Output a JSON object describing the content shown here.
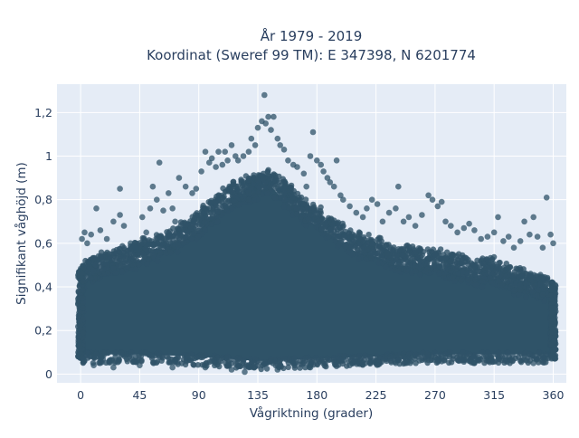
{
  "chart_data": {
    "type": "scatter",
    "title_line1": "År 1979 - 2019",
    "title_line2": "Koordinat (Sweref 99 TM): E 347398, N 6201774",
    "xlabel": "Vågriktning (grader)",
    "ylabel": "Signifikant våghöjd (m)",
    "xlim": [
      -18,
      370
    ],
    "ylim": [
      -0.04,
      1.33
    ],
    "x_ticks": [
      0,
      45,
      90,
      135,
      180,
      225,
      270,
      315,
      360
    ],
    "x_tick_labels": [
      "0",
      "45",
      "90",
      "135",
      "180",
      "225",
      "270",
      "315",
      "360"
    ],
    "y_ticks": [
      0,
      0.2,
      0.4,
      0.6,
      0.8,
      1.0,
      1.2
    ],
    "y_tick_labels": [
      "0",
      "0,2",
      "0,4",
      "0,6",
      "0,8",
      "1",
      "1,2"
    ],
    "grid": true,
    "marker_color": "#2f5368",
    "plot_bg": "#e5ecf6",
    "dense_band": {
      "x_range": [
        0,
        360
      ],
      "upper_envelope": [
        [
          0,
          0.48
        ],
        [
          10,
          0.52
        ],
        [
          20,
          0.54
        ],
        [
          30,
          0.55
        ],
        [
          45,
          0.58
        ],
        [
          60,
          0.62
        ],
        [
          75,
          0.66
        ],
        [
          90,
          0.72
        ],
        [
          105,
          0.8
        ],
        [
          120,
          0.86
        ],
        [
          135,
          0.9
        ],
        [
          145,
          0.92
        ],
        [
          155,
          0.86
        ],
        [
          170,
          0.78
        ],
        [
          180,
          0.74
        ],
        [
          195,
          0.68
        ],
        [
          210,
          0.62
        ],
        [
          225,
          0.6
        ],
        [
          240,
          0.56
        ],
        [
          255,
          0.55
        ],
        [
          270,
          0.55
        ],
        [
          285,
          0.52
        ],
        [
          300,
          0.5
        ],
        [
          315,
          0.5
        ],
        [
          330,
          0.46
        ],
        [
          345,
          0.44
        ],
        [
          360,
          0.42
        ]
      ],
      "lower_envelope": [
        [
          0,
          0.07
        ],
        [
          45,
          0.07
        ],
        [
          90,
          0.06
        ],
        [
          135,
          0.04
        ],
        [
          180,
          0.05
        ],
        [
          225,
          0.06
        ],
        [
          270,
          0.07
        ],
        [
          315,
          0.07
        ],
        [
          360,
          0.07
        ]
      ]
    },
    "outliers": [
      [
        1,
        0.62
      ],
      [
        3,
        0.65
      ],
      [
        5,
        0.6
      ],
      [
        8,
        0.64
      ],
      [
        12,
        0.76
      ],
      [
        15,
        0.66
      ],
      [
        20,
        0.62
      ],
      [
        25,
        0.7
      ],
      [
        30,
        0.73
      ],
      [
        30,
        0.85
      ],
      [
        33,
        0.68
      ],
      [
        38,
        0.6
      ],
      [
        42,
        0.58
      ],
      [
        47,
        0.72
      ],
      [
        50,
        0.65
      ],
      [
        53,
        0.76
      ],
      [
        55,
        0.86
      ],
      [
        58,
        0.8
      ],
      [
        60,
        0.97
      ],
      [
        63,
        0.75
      ],
      [
        67,
        0.83
      ],
      [
        70,
        0.76
      ],
      [
        72,
        0.7
      ],
      [
        75,
        0.9
      ],
      [
        80,
        0.86
      ],
      [
        85,
        0.83
      ],
      [
        88,
        0.85
      ],
      [
        92,
        0.93
      ],
      [
        95,
        1.02
      ],
      [
        98,
        0.97
      ],
      [
        100,
        0.99
      ],
      [
        103,
        0.95
      ],
      [
        105,
        1.02
      ],
      [
        108,
        0.96
      ],
      [
        110,
        1.02
      ],
      [
        112,
        0.98
      ],
      [
        115,
        1.05
      ],
      [
        118,
        1.0
      ],
      [
        120,
        0.98
      ],
      [
        124,
        1.0
      ],
      [
        128,
        1.02
      ],
      [
        130,
        1.08
      ],
      [
        133,
        1.05
      ],
      [
        135,
        1.13
      ],
      [
        138,
        1.16
      ],
      [
        140,
        1.28
      ],
      [
        141,
        1.15
      ],
      [
        143,
        1.18
      ],
      [
        145,
        1.12
      ],
      [
        147,
        1.18
      ],
      [
        150,
        1.08
      ],
      [
        152,
        1.05
      ],
      [
        155,
        1.03
      ],
      [
        158,
        0.98
      ],
      [
        162,
        0.96
      ],
      [
        165,
        0.95
      ],
      [
        170,
        0.92
      ],
      [
        172,
        0.86
      ],
      [
        175,
        1.0
      ],
      [
        177,
        1.11
      ],
      [
        180,
        0.98
      ],
      [
        183,
        0.96
      ],
      [
        185,
        0.93
      ],
      [
        188,
        0.9
      ],
      [
        190,
        0.88
      ],
      [
        193,
        0.86
      ],
      [
        195,
        0.98
      ],
      [
        198,
        0.82
      ],
      [
        200,
        0.8
      ],
      [
        205,
        0.77
      ],
      [
        210,
        0.74
      ],
      [
        215,
        0.72
      ],
      [
        218,
        0.76
      ],
      [
        222,
        0.8
      ],
      [
        226,
        0.78
      ],
      [
        230,
        0.7
      ],
      [
        235,
        0.74
      ],
      [
        240,
        0.76
      ],
      [
        242,
        0.86
      ],
      [
        246,
        0.7
      ],
      [
        250,
        0.72
      ],
      [
        255,
        0.68
      ],
      [
        260,
        0.73
      ],
      [
        265,
        0.82
      ],
      [
        268,
        0.8
      ],
      [
        272,
        0.77
      ],
      [
        275,
        0.79
      ],
      [
        278,
        0.7
      ],
      [
        282,
        0.68
      ],
      [
        287,
        0.65
      ],
      [
        292,
        0.67
      ],
      [
        296,
        0.69
      ],
      [
        300,
        0.66
      ],
      [
        305,
        0.62
      ],
      [
        310,
        0.63
      ],
      [
        315,
        0.65
      ],
      [
        318,
        0.72
      ],
      [
        322,
        0.61
      ],
      [
        326,
        0.63
      ],
      [
        330,
        0.58
      ],
      [
        335,
        0.61
      ],
      [
        338,
        0.7
      ],
      [
        342,
        0.64
      ],
      [
        345,
        0.72
      ],
      [
        348,
        0.63
      ],
      [
        352,
        0.58
      ],
      [
        355,
        0.81
      ],
      [
        358,
        0.64
      ],
      [
        360,
        0.6
      ],
      [
        10,
        0.04
      ],
      [
        25,
        0.03
      ],
      [
        45,
        0.04
      ],
      [
        70,
        0.03
      ],
      [
        95,
        0.03
      ],
      [
        115,
        0.02
      ],
      [
        125,
        0.01
      ],
      [
        150,
        0.02
      ],
      [
        175,
        0.03
      ],
      [
        205,
        0.04
      ],
      [
        240,
        0.05
      ],
      [
        300,
        0.05
      ],
      [
        345,
        0.05
      ]
    ]
  }
}
